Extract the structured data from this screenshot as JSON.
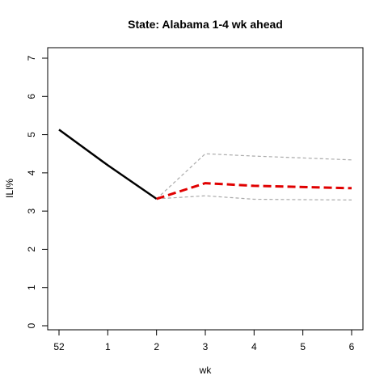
{
  "chart_data": {
    "type": "line",
    "title": "State: Alabama 1-4 wk ahead",
    "xlabel": "wk",
    "ylabel": "ILI%",
    "x_tick_labels": [
      "52",
      "1",
      "2",
      "3",
      "4",
      "5",
      "6"
    ],
    "y_ticks": [
      0,
      1,
      2,
      3,
      4,
      5,
      6,
      7
    ],
    "ylim": [
      0,
      7
    ],
    "grid": false,
    "series": [
      {
        "role": "observed",
        "color": "#000000",
        "style": "solid",
        "points": [
          {
            "x": "52",
            "y": 5.13
          },
          {
            "x": "1",
            "y": 4.2
          },
          {
            "x": "2",
            "y": 3.32
          }
        ]
      },
      {
        "role": "forecast",
        "color": "#e00000",
        "style": "dashed",
        "points": [
          {
            "x": "2",
            "y": 3.32
          },
          {
            "x": "3",
            "y": 3.73
          },
          {
            "x": "4",
            "y": 3.66
          },
          {
            "x": "5",
            "y": 3.63
          },
          {
            "x": "6",
            "y": 3.6
          }
        ]
      },
      {
        "role": "upper-bound",
        "color": "#aaaaaa",
        "style": "dashed",
        "points": [
          {
            "x": "2",
            "y": 3.32
          },
          {
            "x": "3",
            "y": 4.5
          },
          {
            "x": "4",
            "y": 4.44
          },
          {
            "x": "5",
            "y": 4.39
          },
          {
            "x": "6",
            "y": 4.34
          }
        ]
      },
      {
        "role": "lower-bound",
        "color": "#aaaaaa",
        "style": "dashed",
        "points": [
          {
            "x": "2",
            "y": 3.32
          },
          {
            "x": "3",
            "y": 3.4
          },
          {
            "x": "4",
            "y": 3.31
          },
          {
            "x": "5",
            "y": 3.3
          },
          {
            "x": "6",
            "y": 3.29
          }
        ]
      }
    ]
  }
}
